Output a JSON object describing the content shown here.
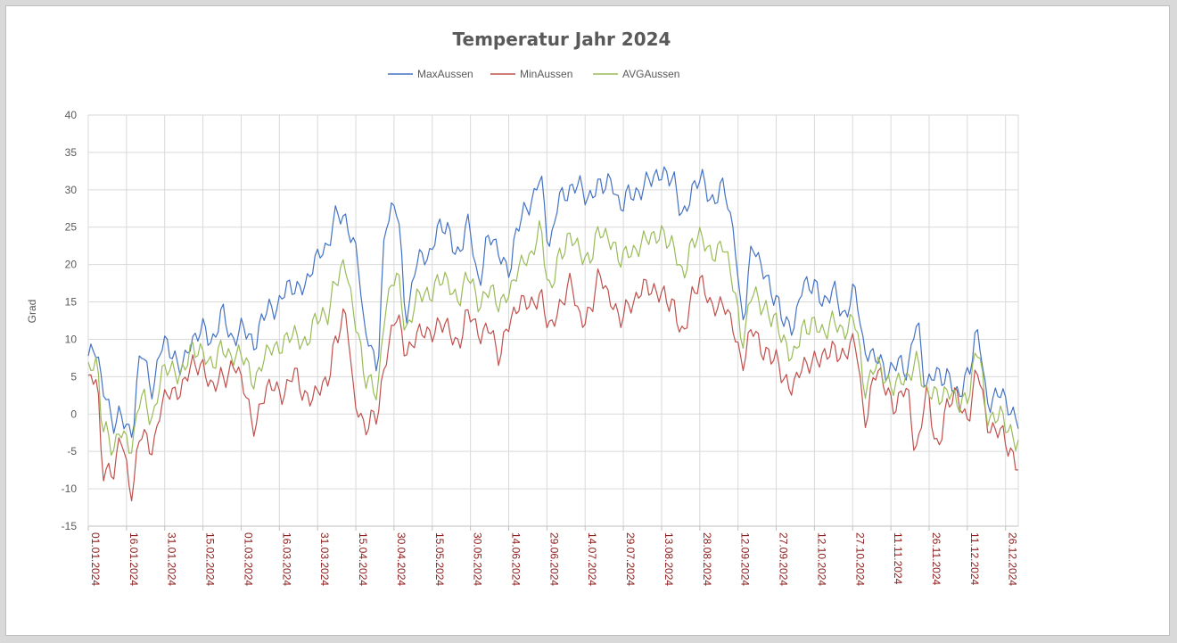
{
  "chart_data": {
    "type": "line",
    "title": "Temperatur Jahr 2024",
    "ylabel": "Grad",
    "xlabel": "",
    "ylim": [
      -15,
      40
    ],
    "yticks": [
      40,
      35,
      30,
      25,
      20,
      15,
      10,
      5,
      0,
      -5,
      -10,
      -15
    ],
    "xticks": [
      {
        "label": "01.01.2024",
        "day": 0
      },
      {
        "label": "16.01.2024",
        "day": 15
      },
      {
        "label": "31.01.2024",
        "day": 30
      },
      {
        "label": "15.02.2024",
        "day": 45
      },
      {
        "label": "01.03.2024",
        "day": 60
      },
      {
        "label": "16.03.2024",
        "day": 75
      },
      {
        "label": "31.03.2024",
        "day": 90
      },
      {
        "label": "15.04.2024",
        "day": 105
      },
      {
        "label": "30.04.2024",
        "day": 120
      },
      {
        "label": "15.05.2024",
        "day": 135
      },
      {
        "label": "30.05.2024",
        "day": 150
      },
      {
        "label": "14.06.2024",
        "day": 165
      },
      {
        "label": "29.06.2024",
        "day": 180
      },
      {
        "label": "14.07.2024",
        "day": 195
      },
      {
        "label": "29.07.2024",
        "day": 210
      },
      {
        "label": "13.08.2024",
        "day": 225
      },
      {
        "label": "28.08.2024",
        "day": 240
      },
      {
        "label": "12.09.2024",
        "day": 255
      },
      {
        "label": "27.09.2024",
        "day": 270
      },
      {
        "label": "12.10.2024",
        "day": 285
      },
      {
        "label": "27.10.2024",
        "day": 300
      },
      {
        "label": "11.11.2024",
        "day": 315
      },
      {
        "label": "26.11.2024",
        "day": 330
      },
      {
        "label": "11.12.2024",
        "day": 345
      },
      {
        "label": "26.12.2024",
        "day": 360
      }
    ],
    "xdays": 366,
    "grid": true,
    "legend_position": "top",
    "series": [
      {
        "name": "MaxAussen",
        "color": "#4472c4",
        "days": [
          0,
          3,
          6,
          10,
          13,
          17,
          21,
          25,
          29,
          33,
          37,
          41,
          45,
          49,
          53,
          57,
          61,
          65,
          69,
          73,
          77,
          81,
          85,
          89,
          93,
          97,
          101,
          105,
          109,
          113,
          117,
          121,
          125,
          129,
          133,
          137,
          141,
          145,
          149,
          153,
          157,
          161,
          165,
          169,
          173,
          177,
          181,
          185,
          189,
          193,
          197,
          201,
          205,
          209,
          213,
          217,
          221,
          225,
          229,
          233,
          237,
          241,
          245,
          249,
          253,
          257,
          261,
          265,
          269,
          273,
          277,
          281,
          285,
          289,
          293,
          297,
          301,
          305,
          309,
          313,
          317,
          321,
          325,
          329,
          333,
          337,
          341,
          345,
          349,
          353,
          357,
          361,
          365
        ],
        "values": [
          7,
          8.7,
          4,
          -2.2,
          0,
          -2,
          7.8,
          4,
          9,
          8,
          7,
          9,
          12.5,
          9,
          13.8,
          10,
          11,
          10,
          13,
          14,
          17,
          16,
          18,
          20,
          22,
          27,
          25,
          23,
          10,
          6.5,
          26,
          27,
          14,
          20,
          21,
          25,
          24,
          22,
          25,
          18,
          24,
          21,
          20,
          25,
          28,
          32,
          22,
          30,
          29,
          31,
          29,
          30,
          32,
          27,
          30,
          30,
          31,
          33,
          31,
          27,
          30,
          31,
          29,
          30,
          25,
          13,
          22,
          20,
          15,
          13,
          12,
          17,
          18,
          14,
          17,
          13,
          16,
          9,
          7,
          6,
          7,
          5,
          13,
          3,
          6,
          5,
          2,
          6,
          10,
          2,
          3,
          0.5,
          0
        ]
      },
      {
        "name": "MinAussen",
        "color": "#c0504d",
        "days": [
          0,
          3,
          6,
          10,
          13,
          17,
          21,
          25,
          29,
          33,
          37,
          41,
          45,
          49,
          53,
          57,
          61,
          65,
          69,
          73,
          77,
          81,
          85,
          89,
          93,
          97,
          101,
          105,
          109,
          113,
          117,
          121,
          125,
          129,
          133,
          137,
          141,
          145,
          149,
          153,
          157,
          161,
          165,
          169,
          173,
          177,
          181,
          185,
          189,
          193,
          197,
          201,
          205,
          209,
          213,
          217,
          221,
          225,
          229,
          233,
          237,
          241,
          245,
          249,
          253,
          257,
          261,
          265,
          269,
          273,
          277,
          281,
          285,
          289,
          293,
          297,
          301,
          305,
          309,
          313,
          317,
          321,
          325,
          329,
          333,
          337,
          341,
          345,
          349,
          353,
          357,
          361,
          365
        ],
        "values": [
          3.5,
          5,
          -7,
          -8.5,
          -3,
          -10,
          -3,
          -4,
          1,
          3,
          4,
          6,
          7,
          3,
          5,
          7,
          3,
          -1,
          2,
          4,
          3,
          5,
          3,
          2,
          4,
          10,
          12.5,
          2,
          -2.5,
          0,
          8,
          12.5,
          9,
          10,
          11,
          12,
          11,
          10,
          13,
          11,
          12,
          7,
          13,
          14,
          15,
          16,
          11,
          15,
          17,
          13,
          14,
          18,
          16,
          12,
          15,
          17,
          16,
          17,
          14,
          11,
          16,
          17,
          15,
          14,
          12,
          7,
          11,
          9,
          7,
          5,
          4,
          6,
          8,
          7,
          9,
          8,
          9,
          0,
          5,
          4,
          1,
          3,
          -4,
          2,
          -4,
          1,
          2,
          0,
          5,
          -1,
          -2,
          -5,
          -6
        ]
      },
      {
        "name": "AVGAussen",
        "color": "#9bbb59",
        "days": [
          0,
          3,
          6,
          10,
          13,
          17,
          21,
          25,
          29,
          33,
          37,
          41,
          45,
          49,
          53,
          57,
          61,
          65,
          69,
          73,
          77,
          81,
          85,
          89,
          93,
          97,
          101,
          105,
          109,
          113,
          117,
          121,
          125,
          129,
          133,
          137,
          141,
          145,
          149,
          153,
          157,
          161,
          165,
          169,
          173,
          177,
          181,
          185,
          189,
          193,
          197,
          201,
          205,
          209,
          213,
          217,
          221,
          225,
          229,
          233,
          237,
          241,
          245,
          249,
          253,
          257,
          261,
          265,
          269,
          273,
          277,
          281,
          285,
          289,
          293,
          297,
          301,
          305,
          309,
          313,
          317,
          321,
          325,
          329,
          333,
          337,
          341,
          345,
          349,
          353,
          357,
          361,
          365
        ],
        "values": [
          5,
          7,
          -1,
          -5.5,
          -2,
          -4,
          2,
          0,
          5,
          6,
          6,
          8,
          9,
          6,
          9,
          8,
          7,
          5,
          7,
          9,
          10,
          10,
          10,
          12,
          13,
          18,
          19,
          13,
          4,
          3,
          15,
          18,
          12,
          15,
          16,
          18,
          17,
          16,
          18,
          15,
          17,
          14,
          17,
          19,
          21,
          25,
          16,
          22,
          23,
          22,
          21,
          24,
          24,
          20,
          22,
          23,
          23,
          25,
          22,
          19,
          23,
          23,
          22,
          22,
          18,
          10,
          16,
          15,
          12,
          10,
          8,
          11,
          13,
          10,
          13,
          11,
          12,
          4,
          6,
          5,
          4,
          4,
          8,
          2,
          3,
          3,
          1,
          3,
          8,
          0,
          0,
          -2.5,
          -3
        ]
      }
    ]
  }
}
